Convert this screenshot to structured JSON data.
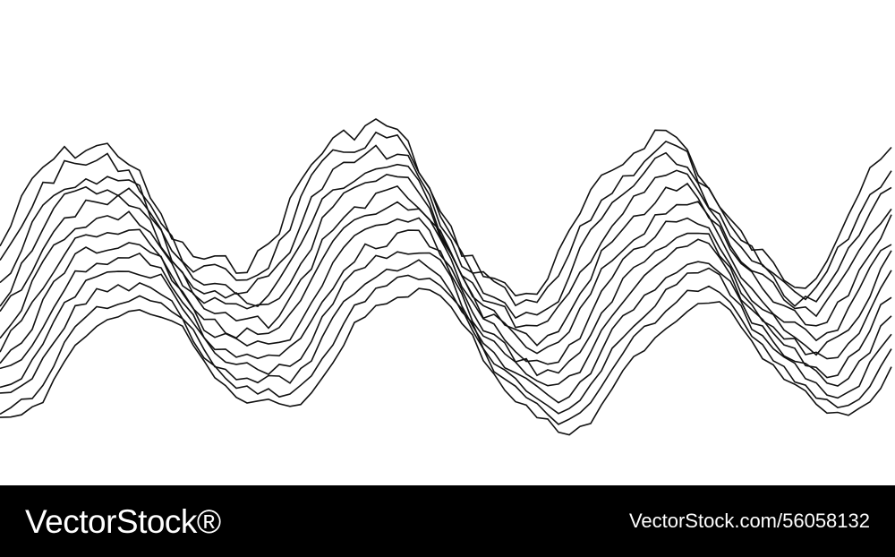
{
  "artwork": {
    "subject": "wireframe-wave-terrain",
    "stroke_color": "#111111",
    "background_color": "#ffffff",
    "line_count": 13
  },
  "footer": {
    "brand": "VectorStock®",
    "url": "VectorStock.com/56058132",
    "background_color": "#000000",
    "text_color": "#ffffff"
  }
}
